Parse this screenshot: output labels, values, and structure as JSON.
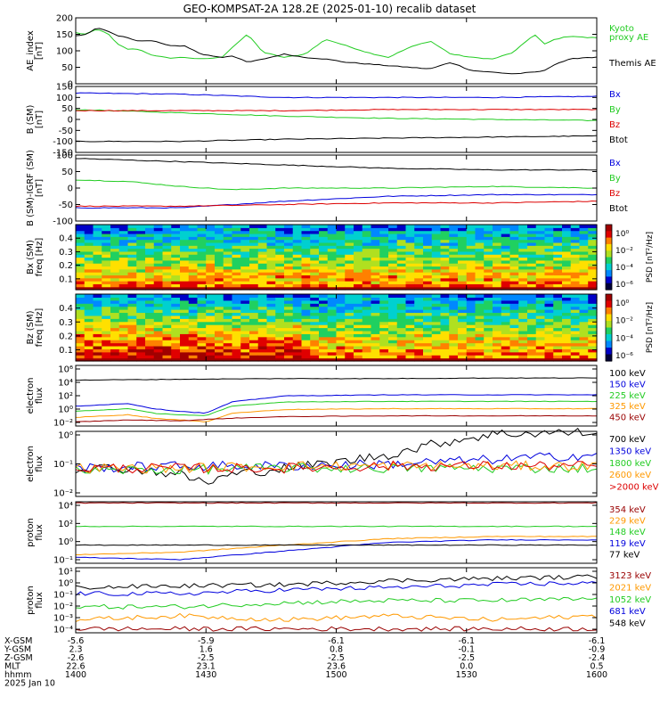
{
  "title": "GEO-KOMPSAT-2A 128.2E (2025-01-10) recalib dataset",
  "time_axis": {
    "rows": [
      {
        "label": "X-GSM",
        "values": [
          "-5.6",
          "-5.9",
          "-6.1",
          "-6.1",
          "-6.1"
        ]
      },
      {
        "label": "Y-GSM",
        "values": [
          "2.3",
          "1.6",
          "0.8",
          "-0.1",
          "-0.9"
        ]
      },
      {
        "label": "Z-GSM",
        "values": [
          "-2.6",
          "-2.5",
          "-2.5",
          "-2.5",
          "-2.4"
        ]
      },
      {
        "label": "MLT",
        "values": [
          "22.6",
          "23.1",
          "23.6",
          "0.0",
          "0.5"
        ]
      },
      {
        "label": "hhmm",
        "values": [
          "1400",
          "1430",
          "1500",
          "1530",
          "1600"
        ]
      }
    ],
    "date": "2025 Jan 10"
  },
  "colors": {
    "black": "#000000",
    "green": "#22cc22",
    "blue": "#0000dd",
    "red": "#dd0000",
    "orange": "#ff9900",
    "darkred": "#990000",
    "cyan": "#1aa0c8"
  },
  "chart_data": [
    {
      "id": "ae",
      "type": "line",
      "ylabel": "AE_index\n[nT]",
      "ylim": [
        0,
        200
      ],
      "yticks": [
        "0",
        "50",
        "100",
        "150",
        "200"
      ],
      "series": [
        {
          "name": "Kyoto\nproxy AE",
          "color": "green",
          "x": [
            0,
            2,
            4,
            6,
            8,
            10,
            12,
            15,
            18,
            21,
            24,
            28,
            30,
            33,
            36,
            40,
            44,
            48,
            52,
            56,
            60,
            64,
            68,
            72,
            76,
            80,
            84,
            88,
            90,
            92,
            95,
            98,
            100
          ],
          "y": [
            155,
            150,
            165,
            155,
            120,
            105,
            105,
            85,
            78,
            80,
            75,
            80,
            110,
            150,
            95,
            80,
            90,
            135,
            115,
            95,
            80,
            110,
            130,
            90,
            80,
            75,
            95,
            150,
            120,
            135,
            145,
            140,
            140
          ]
        },
        {
          "name": "Themis AE",
          "color": "black",
          "x": [
            0,
            2,
            4,
            6,
            8,
            10,
            12,
            15,
            18,
            21,
            24,
            28,
            30,
            33,
            36,
            40,
            44,
            48,
            52,
            56,
            60,
            64,
            68,
            72,
            76,
            80,
            84,
            88,
            90,
            92,
            95,
            98,
            100
          ],
          "y": [
            145,
            150,
            170,
            160,
            145,
            140,
            130,
            130,
            115,
            115,
            90,
            80,
            85,
            65,
            75,
            90,
            80,
            75,
            65,
            60,
            55,
            50,
            45,
            65,
            40,
            35,
            30,
            35,
            40,
            60,
            75,
            80,
            80
          ]
        }
      ]
    },
    {
      "id": "bsm",
      "type": "line",
      "ylabel": "B (SM)\n[nT]",
      "ylim": [
        -150,
        150
      ],
      "yticks": [
        "-150",
        "-100",
        "-50",
        "0",
        "50",
        "100",
        "150"
      ],
      "series": [
        {
          "name": "Bx",
          "color": "blue",
          "x": [
            0,
            20,
            40,
            60,
            80,
            100
          ],
          "y": [
            120,
            115,
            100,
            100,
            100,
            105
          ]
        },
        {
          "name": "By",
          "color": "green",
          "x": [
            0,
            20,
            40,
            60,
            80,
            100
          ],
          "y": [
            45,
            30,
            15,
            5,
            0,
            -5
          ]
        },
        {
          "name": "Bz",
          "color": "red",
          "x": [
            0,
            20,
            40,
            60,
            80,
            100
          ],
          "y": [
            40,
            40,
            40,
            45,
            45,
            45
          ]
        },
        {
          "name": "Btot",
          "color": "black",
          "x": [
            0,
            20,
            40,
            60,
            80,
            100
          ],
          "y": [
            -100,
            -100,
            -90,
            -85,
            -80,
            -75
          ]
        }
      ]
    },
    {
      "id": "bsmgrf",
      "type": "line",
      "ylabel": "B (SM)-IGRF (SM)\n[nT]",
      "ylim": [
        -100,
        100
      ],
      "yticks": [
        "-100",
        "-50",
        "0",
        "50",
        "100"
      ],
      "series": [
        {
          "name": "Bx",
          "color": "blue",
          "x": [
            0,
            20,
            40,
            60,
            80,
            100
          ],
          "y": [
            -60,
            -60,
            -40,
            -25,
            -20,
            -20
          ]
        },
        {
          "name": "By",
          "color": "green",
          "x": [
            0,
            10,
            20,
            30,
            40,
            60,
            80,
            100
          ],
          "y": [
            25,
            20,
            5,
            -5,
            0,
            0,
            5,
            0
          ]
        },
        {
          "name": "Bz",
          "color": "red",
          "x": [
            0,
            20,
            40,
            60,
            80,
            100
          ],
          "y": [
            -55,
            -55,
            -50,
            -45,
            -45,
            -40
          ]
        },
        {
          "name": "Btot",
          "color": "black",
          "x": [
            0,
            20,
            40,
            60,
            80,
            100
          ],
          "y": [
            90,
            80,
            70,
            60,
            55,
            55
          ]
        }
      ]
    },
    {
      "id": "specbx",
      "type": "heatmap",
      "ylabel": "Bx (SM)\nfreq [Hz]",
      "ylim": [
        0.02,
        0.5
      ],
      "yticks": [
        "0.1",
        "0.2",
        "0.3",
        "0.4"
      ],
      "colorbar_label": "PSD [nT²/Hz]",
      "colorbar_ticks": [
        "10⁰",
        "10⁻²",
        "10⁻⁴",
        "10⁻⁶"
      ]
    },
    {
      "id": "specbz",
      "type": "heatmap",
      "ylabel": "Bz (SM)\nfreq [Hz]",
      "ylim": [
        0.02,
        0.5
      ],
      "yticks": [
        "0.1",
        "0.2",
        "0.3",
        "0.4"
      ],
      "colorbar_label": "PSD [nT²/Hz]",
      "colorbar_ticks": [
        "10⁰",
        "10⁻²",
        "10⁻⁴",
        "10⁻⁶"
      ]
    },
    {
      "id": "elec1",
      "type": "line",
      "ylabel": "electron\nflux",
      "ylim": [
        0.1,
        1000000
      ],
      "scale": "log",
      "yticks": [
        "10⁶",
        "10⁴",
        "10²",
        "10⁰",
        "10⁻²"
      ],
      "series": [
        {
          "name": "100 keV",
          "color": "black",
          "x": [
            0,
            20,
            40,
            60,
            80,
            100
          ],
          "y": [
            20000,
            25000,
            30000,
            30000,
            35000,
            35000
          ]
        },
        {
          "name": "150 keV",
          "color": "blue",
          "x": [
            0,
            10,
            15,
            20,
            25,
            30,
            40,
            60,
            80,
            100
          ],
          "y": [
            20,
            40,
            10,
            5,
            3,
            60,
            300,
            400,
            400,
            400
          ]
        },
        {
          "name": "225 keV",
          "color": "green",
          "x": [
            0,
            10,
            15,
            20,
            25,
            30,
            40,
            60,
            80,
            100
          ],
          "y": [
            5,
            10,
            3,
            2,
            1.5,
            20,
            60,
            70,
            70,
            70
          ]
        },
        {
          "name": "325 keV",
          "color": "orange",
          "x": [
            0,
            10,
            15,
            20,
            25,
            30,
            40,
            60,
            80,
            100
          ],
          "y": [
            1,
            2,
            0.8,
            0.5,
            0.3,
            3,
            8,
            10,
            10,
            10
          ]
        },
        {
          "name": "450 keV",
          "color": "darkred",
          "x": [
            0,
            10,
            20,
            30,
            40,
            60,
            80,
            100
          ],
          "y": [
            0.3,
            0.5,
            0.4,
            0.8,
            1.2,
            1.5,
            1.5,
            1.5
          ]
        }
      ]
    },
    {
      "id": "elec2",
      "type": "line",
      "ylabel": "electron\nflux",
      "ylim": [
        0.005,
        1
      ],
      "scale": "log",
      "yticks": [
        "10⁰",
        "10⁻¹",
        "10⁻²"
      ],
      "series": [
        {
          "name": "700 keV",
          "color": "black",
          "x": [
            0,
            10,
            20,
            25,
            30,
            40,
            50,
            60,
            70,
            80,
            90,
            100
          ],
          "y": [
            0.05,
            0.05,
            0.03,
            0.015,
            0.03,
            0.05,
            0.08,
            0.15,
            0.4,
            0.8,
            0.9,
            0.9
          ]
        },
        {
          "name": "1350 keV",
          "color": "blue",
          "x": [
            0,
            20,
            40,
            60,
            80,
            100
          ],
          "y": [
            0.05,
            0.06,
            0.06,
            0.07,
            0.1,
            0.15
          ]
        },
        {
          "name": "1800 keV",
          "color": "green",
          "x": [
            0,
            20,
            40,
            60,
            80,
            100
          ],
          "y": [
            0.04,
            0.045,
            0.05,
            0.05,
            0.05,
            0.05
          ]
        },
        {
          "name": "2600 keV",
          "color": "orange",
          "x": [
            0,
            20,
            40,
            60,
            80,
            100
          ],
          "y": [
            0.05,
            0.05,
            0.06,
            0.06,
            0.06,
            0.06
          ]
        },
        {
          "name": ">2000 keV",
          "color": "red",
          "x": [
            0,
            20,
            40,
            60,
            80,
            100
          ],
          "y": [
            0.05,
            0.05,
            0.05,
            0.06,
            0.06,
            0.06
          ]
        }
      ]
    },
    {
      "id": "prot1",
      "type": "line",
      "ylabel": "proton\nflux",
      "ylim": [
        0.1,
        10000
      ],
      "scale": "log",
      "yticks": [
        "10⁴",
        "10²",
        "10⁰",
        "10⁻¹"
      ],
      "series": [
        {
          "name": "354 keV",
          "color": "darkred",
          "x": [
            0,
            20,
            40,
            60,
            80,
            100
          ],
          "y": [
            8000,
            8000,
            8000,
            8000,
            8000,
            8000
          ]
        },
        {
          "name": "229 keV",
          "color": "orange",
          "x": [
            0,
            20,
            40,
            60,
            80,
            100
          ],
          "y": [
            0.5,
            0.8,
            3,
            10,
            15,
            15
          ]
        },
        {
          "name": "148 keV",
          "color": "green",
          "x": [
            0,
            20,
            40,
            60,
            80,
            100
          ],
          "y": [
            100,
            100,
            100,
            100,
            100,
            100
          ]
        },
        {
          "name": "119 keV",
          "color": "blue",
          "x": [
            0,
            20,
            40,
            60,
            80,
            100
          ],
          "y": [
            0.3,
            0.2,
            1,
            5,
            8,
            8
          ]
        },
        {
          "name": "77 keV",
          "color": "black",
          "x": [
            0,
            20,
            40,
            60,
            80,
            100
          ],
          "y": [
            3,
            3,
            3,
            3,
            3,
            3
          ]
        }
      ]
    },
    {
      "id": "prot2",
      "type": "line",
      "ylabel": "proton\nflux",
      "ylim": [
        0.0001,
        10
      ],
      "scale": "log",
      "yticks": [
        "10¹",
        "10⁰",
        "10⁻¹",
        "10⁻²",
        "10⁻³",
        "10⁻⁴"
      ],
      "series": [
        {
          "name": "3123 keV",
          "color": "darkred",
          "x": [
            0,
            20,
            40,
            60,
            80,
            100
          ],
          "y": [
            0.0002,
            0.0002,
            0.0002,
            0.0002,
            0.0002,
            0.0002
          ]
        },
        {
          "name": "2021 keV",
          "color": "orange",
          "x": [
            0,
            20,
            40,
            60,
            80,
            100
          ],
          "y": [
            0.001,
            0.002,
            0.001,
            0.002,
            0.001,
            0.002
          ]
        },
        {
          "name": "1052 keV",
          "color": "green",
          "x": [
            0,
            20,
            40,
            60,
            80,
            100
          ],
          "y": [
            0.01,
            0.01,
            0.02,
            0.03,
            0.03,
            0.04
          ]
        },
        {
          "name": "681 keV",
          "color": "blue",
          "x": [
            0,
            20,
            40,
            60,
            80,
            100
          ],
          "y": [
            0.1,
            0.1,
            0.2,
            0.3,
            0.5,
            0.7
          ]
        },
        {
          "name": "548 keV",
          "color": "black",
          "x": [
            0,
            20,
            40,
            60,
            80,
            100
          ],
          "y": [
            0.3,
            0.4,
            0.5,
            1,
            1.5,
            2
          ]
        }
      ]
    }
  ]
}
